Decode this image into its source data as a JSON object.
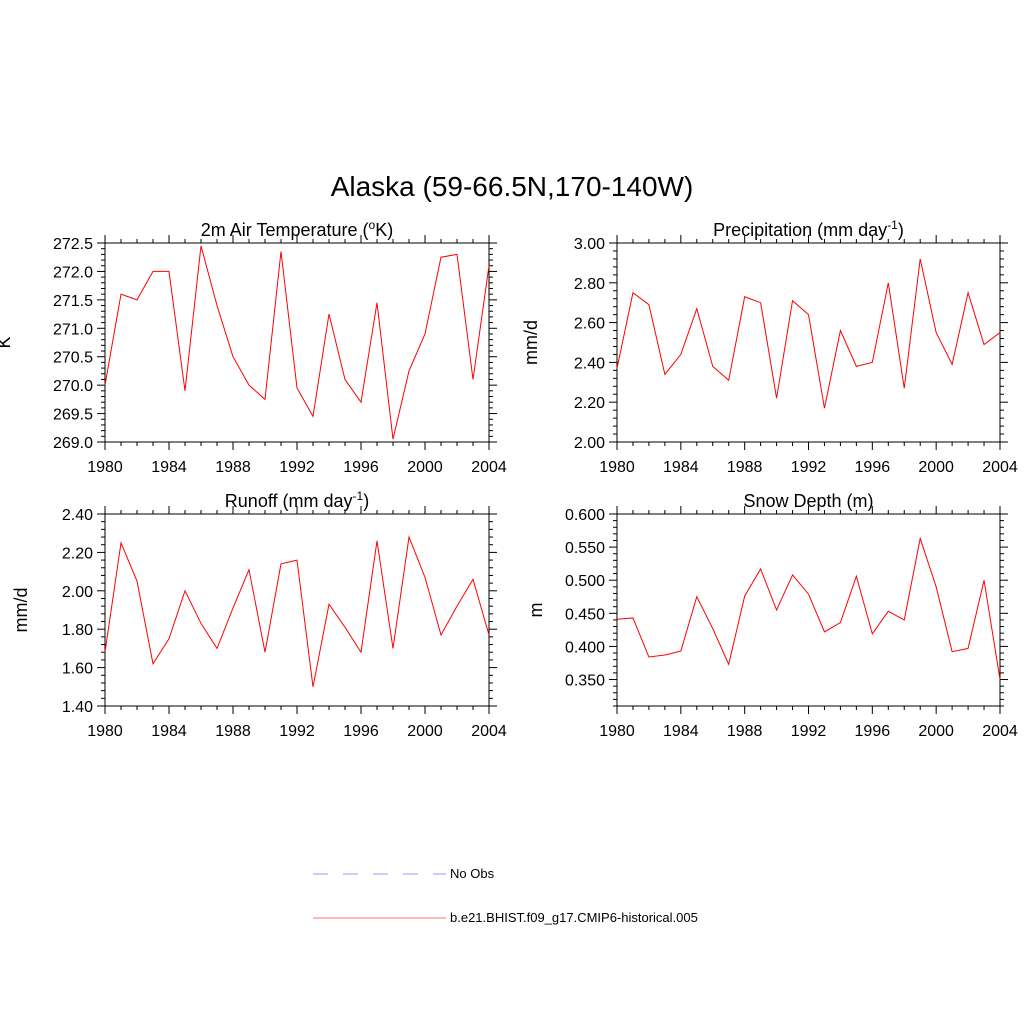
{
  "figure": {
    "title": "Alaska (59-66.5N,170-140W)"
  },
  "chart_data": [
    {
      "type": "line",
      "title": "2m Air Temperature (",
      "title_sup": "o",
      "title_after": "K)",
      "xlabel": "",
      "ylabel": "K",
      "xlim": [
        1980,
        2004
      ],
      "ylim": [
        269.0,
        272.5
      ],
      "yticks": [
        269.0,
        269.5,
        270.0,
        270.5,
        271.0,
        271.5,
        272.0,
        272.5
      ],
      "ytick_labels": [
        "269.0",
        "269.5",
        "270.0",
        "270.5",
        "271.0",
        "271.5",
        "272.0",
        "272.5"
      ],
      "xticks": [
        1980,
        1984,
        1988,
        1992,
        1996,
        2000,
        2004
      ],
      "xtick_labels": [
        "1980",
        "1984",
        "1988",
        "1992",
        "1996",
        "2000",
        "2004"
      ],
      "grid": false,
      "x": [
        1980,
        1981,
        1982,
        1983,
        1984,
        1985,
        1986,
        1987,
        1988,
        1989,
        1990,
        1991,
        1992,
        1993,
        1994,
        1995,
        1996,
        1997,
        1998,
        1999,
        2000,
        2001,
        2002,
        2003,
        2004
      ],
      "series": [
        {
          "name": "b.e21.BHIST.f09_g17.CMIP6-historical.005",
          "color": "#ff0000",
          "values": [
            270.0,
            271.6,
            271.5,
            272.0,
            272.0,
            269.9,
            272.45,
            271.4,
            270.5,
            270.0,
            269.75,
            272.35,
            269.95,
            269.45,
            271.25,
            270.1,
            269.7,
            271.45,
            269.05,
            270.25,
            270.9,
            272.25,
            272.3,
            270.1,
            272.1
          ]
        }
      ]
    },
    {
      "type": "line",
      "title": "Precipitation (mm day",
      "title_sup": "-1",
      "title_after": ")",
      "xlabel": "",
      "ylabel": "mm/d",
      "xlim": [
        1980,
        2004
      ],
      "ylim": [
        2.0,
        3.0
      ],
      "yticks": [
        2.0,
        2.2,
        2.4,
        2.6,
        2.8,
        3.0
      ],
      "ytick_labels": [
        "2.00",
        "2.20",
        "2.40",
        "2.60",
        "2.80",
        "3.00"
      ],
      "xticks": [
        1980,
        1984,
        1988,
        1992,
        1996,
        2000,
        2004
      ],
      "xtick_labels": [
        "1980",
        "1984",
        "1988",
        "1992",
        "1996",
        "2000",
        "2004"
      ],
      "grid": false,
      "x": [
        1980,
        1981,
        1982,
        1983,
        1984,
        1985,
        1986,
        1987,
        1988,
        1989,
        1990,
        1991,
        1992,
        1993,
        1994,
        1995,
        1996,
        1997,
        1998,
        1999,
        2000,
        2001,
        2002,
        2003,
        2004
      ],
      "series": [
        {
          "name": "b.e21.BHIST.f09_g17.CMIP6-historical.005",
          "color": "#ff0000",
          "values": [
            2.37,
            2.75,
            2.69,
            2.34,
            2.44,
            2.67,
            2.38,
            2.31,
            2.73,
            2.7,
            2.22,
            2.71,
            2.64,
            2.17,
            2.56,
            2.38,
            2.4,
            2.8,
            2.27,
            2.92,
            2.55,
            2.39,
            2.75,
            2.49,
            2.55
          ]
        }
      ]
    },
    {
      "type": "line",
      "title": "Runoff (mm day",
      "title_sup": "-1",
      "title_after": ")",
      "xlabel": "",
      "ylabel": "mm/d",
      "xlim": [
        1980,
        2004
      ],
      "ylim": [
        1.4,
        2.4
      ],
      "yticks": [
        1.4,
        1.6,
        1.8,
        2.0,
        2.2,
        2.4
      ],
      "ytick_labels": [
        "1.40",
        "1.60",
        "1.80",
        "2.00",
        "2.20",
        "2.40"
      ],
      "xticks": [
        1980,
        1984,
        1988,
        1992,
        1996,
        2000,
        2004
      ],
      "xtick_labels": [
        "1980",
        "1984",
        "1988",
        "1992",
        "1996",
        "2000",
        "2004"
      ],
      "grid": false,
      "x": [
        1980,
        1981,
        1982,
        1983,
        1984,
        1985,
        1986,
        1987,
        1988,
        1989,
        1990,
        1991,
        1992,
        1993,
        1994,
        1995,
        1996,
        1997,
        1998,
        1999,
        2000,
        2001,
        2002,
        2003,
        2004
      ],
      "series": [
        {
          "name": "b.e21.BHIST.f09_g17.CMIP6-historical.005",
          "color": "#ff0000",
          "values": [
            1.68,
            2.25,
            2.05,
            1.62,
            1.75,
            2.0,
            1.83,
            1.7,
            1.91,
            2.11,
            1.68,
            2.14,
            2.16,
            1.5,
            1.93,
            1.81,
            1.68,
            2.26,
            1.7,
            2.28,
            2.07,
            1.77,
            1.92,
            2.06,
            1.77
          ]
        }
      ]
    },
    {
      "type": "line",
      "title": "Snow Depth (m)",
      "title_sup": "",
      "title_after": "",
      "xlabel": "",
      "ylabel": "m",
      "xlim": [
        1980,
        2004
      ],
      "ylim": [
        0.31,
        0.6
      ],
      "yticks": [
        0.35,
        0.4,
        0.45,
        0.5,
        0.55,
        0.6
      ],
      "ytick_labels": [
        "0.350",
        "0.400",
        "0.450",
        "0.500",
        "0.550",
        "0.600"
      ],
      "xticks": [
        1980,
        1984,
        1988,
        1992,
        1996,
        2000,
        2004
      ],
      "xtick_labels": [
        "1980",
        "1984",
        "1988",
        "1992",
        "1996",
        "2000",
        "2004"
      ],
      "grid": false,
      "x": [
        1980,
        1981,
        1982,
        1983,
        1984,
        1985,
        1986,
        1987,
        1988,
        1989,
        1990,
        1991,
        1992,
        1993,
        1994,
        1995,
        1996,
        1997,
        1998,
        1999,
        2000,
        2001,
        2002,
        2003,
        2004
      ],
      "series": [
        {
          "name": "b.e21.BHIST.f09_g17.CMIP6-historical.005",
          "color": "#ff0000",
          "values": [
            0.441,
            0.443,
            0.384,
            0.387,
            0.393,
            0.475,
            0.427,
            0.373,
            0.476,
            0.517,
            0.455,
            0.508,
            0.479,
            0.422,
            0.436,
            0.506,
            0.419,
            0.453,
            0.44,
            0.563,
            0.49,
            0.392,
            0.397,
            0.5,
            0.35
          ]
        }
      ]
    }
  ],
  "legend": {
    "placement": "bottom-center",
    "items": [
      {
        "label": "No Obs",
        "color": "#9999ff",
        "style": "dashed"
      },
      {
        "label": "b.e21.BHIST.f09_g17.CMIP6-historical.005",
        "color": "#ff0000",
        "style": "solid"
      }
    ]
  }
}
